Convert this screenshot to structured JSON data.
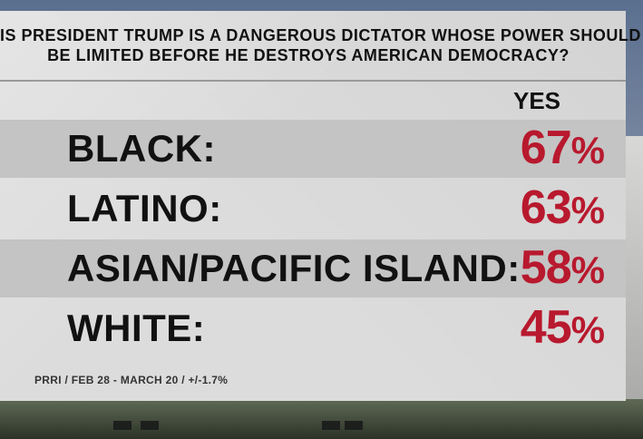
{
  "headline": {
    "line1": "IS PRESIDENT TRUMP IS A DANGEROUS DICTATOR WHOSE POWER SHOULD",
    "line2": "BE LIMITED BEFORE HE DESTROYS AMERICAN DEMOCRACY?"
  },
  "column_header": "YES",
  "rows": [
    {
      "label": "BLACK:",
      "value": "67",
      "unit": "%"
    },
    {
      "label": "LATINO:",
      "value": "63",
      "unit": "%"
    },
    {
      "label": "ASIAN/PACIFIC ISLAND:",
      "value": "58",
      "unit": "%"
    },
    {
      "label": "WHITE:",
      "value": "45",
      "unit": "%"
    }
  ],
  "source": "PRRI / FEB 28 - MARCH 20 / +/-1.7%",
  "colors": {
    "accent": "#b8192e",
    "card": "#dcdcdc",
    "shade": "#c4c4c4"
  }
}
